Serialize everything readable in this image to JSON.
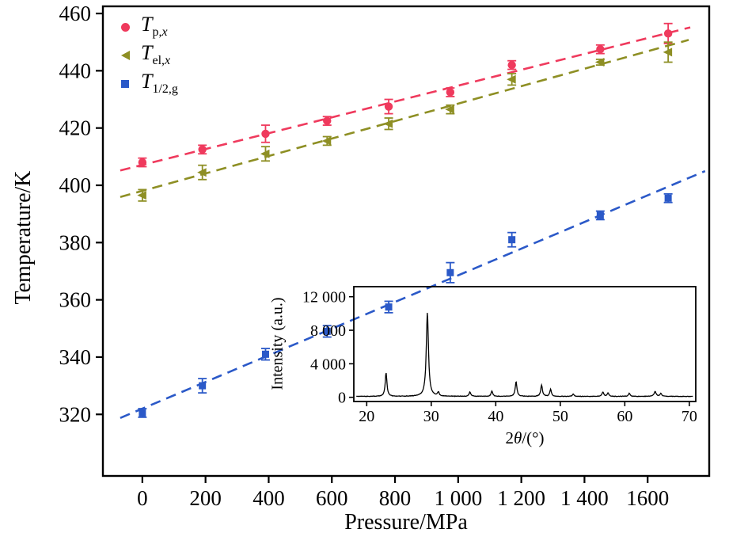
{
  "figure": {
    "x_axis_title": "Pressure/MPa",
    "y_axis_title": "Temperature/K",
    "inset_y_axis_title": "Intensity (a.u.)",
    "inset_x_title_pre": "2",
    "inset_x_title_theta": "θ",
    "inset_x_title_post": "/(°)"
  },
  "legend": {
    "items": [
      {
        "main": "T",
        "sub_pre": "p,",
        "sub_it": "x",
        "marker": "circle",
        "color": "#ef3a5d"
      },
      {
        "main": "T",
        "sub_pre": "el,",
        "sub_it": "x",
        "marker": "triangle-left",
        "color": "#8e8f24"
      },
      {
        "main": "T",
        "sub_pre": "1/2,g",
        "sub_it": "",
        "marker": "square",
        "color": "#2b59c8"
      }
    ]
  },
  "chart_data": {
    "type": "scatter",
    "xlabel": "Pressure/MPa",
    "ylabel": "Temperature/K",
    "xlim": [
      -125,
      1795
    ],
    "ylim": [
      298.5,
      462.5
    ],
    "x_ticks": [
      0,
      200,
      400,
      600,
      800,
      1000,
      1200,
      1400,
      1600
    ],
    "x_tick_labels": [
      "0",
      "200",
      "400",
      "600",
      "800",
      "1 000",
      "1 200",
      "1 400",
      "1600"
    ],
    "y_ticks": [
      320,
      340,
      360,
      380,
      400,
      420,
      440,
      460
    ],
    "grid": false,
    "legend_position": "top-left",
    "x": [
      0,
      190,
      390,
      585,
      780,
      975,
      1170,
      1450,
      1665
    ],
    "series": [
      {
        "name": "Tp,x",
        "color": "#ef3a5d",
        "marker": "circle",
        "values": [
          408,
          412.5,
          418,
          422.5,
          427.5,
          432.5,
          442,
          447.5,
          453
        ],
        "errors": [
          1.5,
          1.5,
          3,
          1.5,
          2.5,
          1.5,
          1.5,
          1.5,
          3.5
        ],
        "trend": "dashed",
        "trend_x": [
          -70,
          1735
        ]
      },
      {
        "name": "Tel,x",
        "color": "#8e8f24",
        "marker": "triangle-left",
        "values": [
          396.5,
          404.5,
          411,
          415.5,
          421.5,
          426.5,
          437,
          443,
          446.5
        ],
        "errors": [
          2,
          2.5,
          2.5,
          1.5,
          2,
          1.5,
          2,
          1,
          3.5
        ],
        "trend": "dashed",
        "trend_x": [
          -70,
          1730
        ]
      },
      {
        "name": "T1/2,g",
        "color": "#2b59c8",
        "marker": "square",
        "values": [
          320.5,
          330,
          341,
          349,
          357.5,
          369.5,
          381,
          389.5,
          395.5
        ],
        "errors": [
          1.5,
          2.5,
          2,
          2,
          2,
          3.5,
          2.5,
          1.5,
          1.5
        ],
        "trend": "dashed",
        "trend_x": [
          -70,
          1782
        ]
      }
    ],
    "inset": {
      "type": "line",
      "xlabel": "2θ/(°)",
      "ylabel": "Intensity (a.u.)",
      "xlim": [
        18,
        71
      ],
      "ylim": [
        -500,
        13200
      ],
      "x_ticks": [
        20,
        30,
        40,
        50,
        60,
        70
      ],
      "y_ticks": [
        0,
        4000,
        8000,
        12000
      ],
      "y_tick_labels": [
        "0",
        "4 000",
        "8 000",
        "12 000"
      ],
      "baseline_intensity": 80,
      "peaks": [
        [
          23.0,
          2800,
          0.16
        ],
        [
          29.4,
          10000,
          0.2
        ],
        [
          31.1,
          450,
          0.15
        ],
        [
          36.0,
          520,
          0.15
        ],
        [
          39.4,
          650,
          0.15
        ],
        [
          43.15,
          1750,
          0.16
        ],
        [
          47.1,
          1350,
          0.16
        ],
        [
          48.5,
          850,
          0.15
        ],
        [
          52.0,
          300,
          0.14
        ],
        [
          56.6,
          520,
          0.16
        ],
        [
          57.4,
          420,
          0.15
        ],
        [
          60.7,
          380,
          0.15
        ],
        [
          64.7,
          600,
          0.18
        ],
        [
          65.6,
          350,
          0.15
        ]
      ]
    }
  }
}
